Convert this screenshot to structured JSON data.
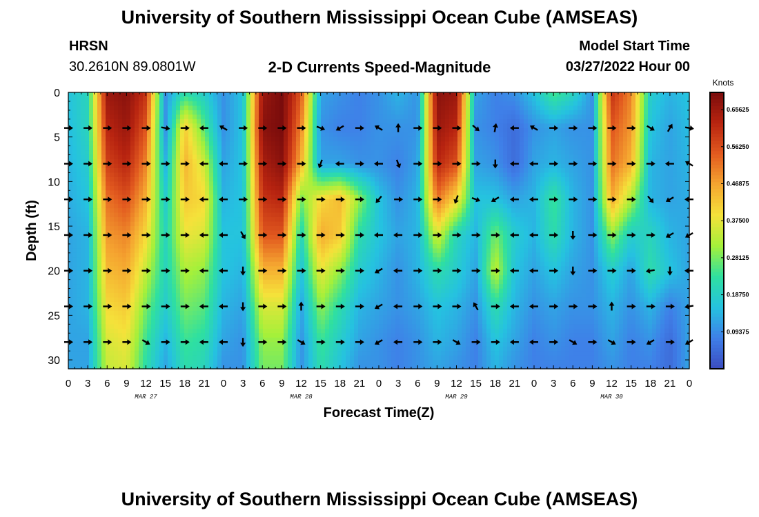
{
  "title": "University of Southern Mississippi Ocean Cube (AMSEAS)",
  "station": {
    "name": "HRSN",
    "coords": "30.2610N  89.0801W"
  },
  "subtitle": "2-D Currents Speed-Magnitude",
  "model_start": {
    "label": "Model Start Time",
    "value": "03/27/2022 Hour 00"
  },
  "footer_title": "University of Southern Mississippi Ocean Cube (AMSEAS)",
  "colors": {
    "colormap": [
      "#3b4cc0",
      "#3f7fe8",
      "#25c2e0",
      "#2fe0a0",
      "#a5f03a",
      "#f5e23a",
      "#f5a530",
      "#e25a1f",
      "#b82410",
      "#7a0c0c"
    ],
    "arrow": "#000000",
    "axis": "#000000"
  },
  "chart_data": {
    "type": "heatmap",
    "title": "2-D Currents Speed-Magnitude",
    "xlabel": "Forecast Time(Z)",
    "ylabel": "Depth (ft)",
    "colorbar_label": "Knots",
    "xlim": [
      0,
      96
    ],
    "ylim": [
      31,
      0
    ],
    "x_ticks_hours": [
      0,
      3,
      6,
      9,
      12,
      15,
      18,
      21,
      24,
      27,
      30,
      33,
      36,
      39,
      42,
      45,
      48,
      51,
      54,
      57,
      60,
      63,
      66,
      69,
      72,
      75,
      78,
      81,
      84,
      87,
      90,
      93,
      96
    ],
    "x_tick_labels": [
      "0",
      "3",
      "6",
      "9",
      "12",
      "15",
      "18",
      "21",
      "0",
      "3",
      "6",
      "9",
      "12",
      "15",
      "18",
      "21",
      "0",
      "3",
      "6",
      "9",
      "12",
      "15",
      "18",
      "21",
      "0",
      "3",
      "6",
      "9",
      "12",
      "15",
      "18",
      "21",
      "0"
    ],
    "day_labels": [
      {
        "hour": 12,
        "label": "MAR 27"
      },
      {
        "hour": 36,
        "label": "MAR 28"
      },
      {
        "hour": 60,
        "label": "MAR 29"
      },
      {
        "hour": 84,
        "label": "MAR 30"
      }
    ],
    "y_ticks": [
      0,
      5,
      10,
      15,
      20,
      25,
      30
    ],
    "colorbar_range": [
      0,
      0.7
    ],
    "colorbar_ticks": [
      "0.65625",
      "0.56250",
      "0.46875",
      "0.37500",
      "0.28125",
      "0.18750",
      "0.09375"
    ],
    "speed_hours": [
      0,
      3,
      6,
      9,
      12,
      15,
      18,
      21,
      24,
      27,
      30,
      33,
      36,
      39,
      42,
      45,
      48,
      51,
      54,
      57,
      60,
      63,
      66,
      69,
      72,
      75,
      78,
      81,
      84,
      87,
      90,
      93,
      96
    ],
    "speed_depths": [
      0,
      4,
      8,
      12,
      16,
      20,
      24,
      28,
      31
    ],
    "speed": [
      [
        0.16,
        0.2,
        0.66,
        0.68,
        0.6,
        0.1,
        0.22,
        0.18,
        0.1,
        0.16,
        0.66,
        0.7,
        0.55,
        0.12,
        0.1,
        0.08,
        0.1,
        0.14,
        0.1,
        0.68,
        0.66,
        0.12,
        0.08,
        0.1,
        0.16,
        0.25,
        0.2,
        0.1,
        0.6,
        0.5,
        0.18,
        0.14,
        0.16
      ],
      [
        0.15,
        0.2,
        0.62,
        0.66,
        0.55,
        0.1,
        0.42,
        0.26,
        0.1,
        0.16,
        0.68,
        0.7,
        0.5,
        0.1,
        0.08,
        0.08,
        0.1,
        0.1,
        0.1,
        0.66,
        0.62,
        0.1,
        0.08,
        0.05,
        0.1,
        0.12,
        0.1,
        0.1,
        0.55,
        0.48,
        0.16,
        0.12,
        0.15
      ],
      [
        0.14,
        0.18,
        0.58,
        0.62,
        0.5,
        0.14,
        0.45,
        0.35,
        0.12,
        0.16,
        0.64,
        0.68,
        0.45,
        0.12,
        0.12,
        0.1,
        0.1,
        0.08,
        0.12,
        0.62,
        0.56,
        0.12,
        0.1,
        0.05,
        0.12,
        0.14,
        0.12,
        0.1,
        0.52,
        0.45,
        0.14,
        0.12,
        0.14
      ],
      [
        0.13,
        0.16,
        0.52,
        0.56,
        0.45,
        0.18,
        0.42,
        0.4,
        0.14,
        0.16,
        0.6,
        0.62,
        0.28,
        0.4,
        0.44,
        0.3,
        0.16,
        0.1,
        0.14,
        0.52,
        0.4,
        0.16,
        0.16,
        0.12,
        0.14,
        0.24,
        0.14,
        0.1,
        0.46,
        0.32,
        0.14,
        0.12,
        0.13
      ],
      [
        0.12,
        0.14,
        0.48,
        0.5,
        0.4,
        0.2,
        0.38,
        0.36,
        0.16,
        0.16,
        0.55,
        0.55,
        0.2,
        0.46,
        0.42,
        0.22,
        0.16,
        0.12,
        0.14,
        0.36,
        0.2,
        0.14,
        0.28,
        0.18,
        0.14,
        0.22,
        0.14,
        0.1,
        0.3,
        0.18,
        0.2,
        0.14,
        0.12
      ],
      [
        0.12,
        0.14,
        0.44,
        0.46,
        0.34,
        0.2,
        0.32,
        0.3,
        0.16,
        0.14,
        0.45,
        0.45,
        0.16,
        0.38,
        0.3,
        0.18,
        0.14,
        0.1,
        0.14,
        0.22,
        0.18,
        0.12,
        0.34,
        0.16,
        0.12,
        0.16,
        0.12,
        0.1,
        0.18,
        0.12,
        0.22,
        0.16,
        0.12
      ],
      [
        0.12,
        0.14,
        0.4,
        0.42,
        0.28,
        0.18,
        0.28,
        0.26,
        0.14,
        0.12,
        0.36,
        0.36,
        0.12,
        0.3,
        0.22,
        0.14,
        0.12,
        0.1,
        0.12,
        0.16,
        0.14,
        0.1,
        0.22,
        0.14,
        0.1,
        0.12,
        0.1,
        0.1,
        0.14,
        0.1,
        0.14,
        0.08,
        0.12
      ],
      [
        0.12,
        0.12,
        0.36,
        0.38,
        0.24,
        0.14,
        0.24,
        0.22,
        0.12,
        0.1,
        0.3,
        0.3,
        0.1,
        0.24,
        0.18,
        0.12,
        0.1,
        0.08,
        0.1,
        0.14,
        0.12,
        0.08,
        0.16,
        0.12,
        0.08,
        0.1,
        0.08,
        0.08,
        0.12,
        0.08,
        0.1,
        0.05,
        0.12
      ],
      [
        0.12,
        0.12,
        0.34,
        0.36,
        0.22,
        0.12,
        0.22,
        0.2,
        0.1,
        0.1,
        0.28,
        0.28,
        0.1,
        0.22,
        0.16,
        0.1,
        0.1,
        0.08,
        0.1,
        0.12,
        0.1,
        0.08,
        0.14,
        0.1,
        0.08,
        0.08,
        0.08,
        0.08,
        0.1,
        0.08,
        0.08,
        0.05,
        0.12
      ]
    ],
    "vector_hours": [
      0,
      3,
      6,
      9,
      12,
      15,
      18,
      21,
      24,
      27,
      30,
      33,
      36,
      39,
      42,
      45,
      48,
      51,
      54,
      57,
      60,
      63,
      66,
      69,
      72,
      75,
      78,
      81,
      84,
      87,
      90,
      93,
      96
    ],
    "vector_depths": [
      4,
      8,
      12,
      16,
      20,
      24,
      28
    ],
    "vector_directions_deg": [
      [
        90,
        90,
        90,
        90,
        90,
        100,
        90,
        270,
        300,
        90,
        90,
        90,
        90,
        110,
        240,
        90,
        300,
        0,
        90,
        90,
        90,
        130,
        10,
        270,
        300,
        90,
        90,
        90,
        90,
        90,
        120,
        30,
        100
      ],
      [
        90,
        90,
        90,
        90,
        90,
        90,
        90,
        270,
        270,
        90,
        90,
        90,
        90,
        200,
        270,
        90,
        270,
        160,
        90,
        90,
        90,
        90,
        180,
        270,
        270,
        90,
        90,
        90,
        90,
        90,
        90,
        270,
        300
      ],
      [
        90,
        90,
        90,
        90,
        90,
        90,
        90,
        270,
        270,
        90,
        90,
        90,
        90,
        90,
        90,
        90,
        220,
        90,
        90,
        90,
        200,
        110,
        240,
        270,
        270,
        90,
        90,
        90,
        90,
        90,
        140,
        240,
        270
      ],
      [
        90,
        90,
        90,
        90,
        90,
        90,
        90,
        270,
        270,
        150,
        90,
        90,
        90,
        90,
        90,
        90,
        270,
        270,
        90,
        90,
        90,
        90,
        90,
        270,
        270,
        90,
        180,
        90,
        90,
        90,
        90,
        240,
        240
      ],
      [
        90,
        90,
        90,
        90,
        90,
        90,
        90,
        270,
        270,
        180,
        90,
        90,
        90,
        90,
        90,
        90,
        240,
        270,
        90,
        90,
        90,
        90,
        90,
        270,
        270,
        90,
        180,
        90,
        90,
        90,
        260,
        180,
        270
      ],
      [
        90,
        90,
        90,
        90,
        90,
        90,
        90,
        270,
        270,
        180,
        90,
        90,
        0,
        90,
        90,
        90,
        240,
        270,
        90,
        90,
        90,
        330,
        90,
        270,
        270,
        90,
        90,
        90,
        0,
        90,
        90,
        90,
        260
      ],
      [
        90,
        90,
        90,
        90,
        120,
        90,
        90,
        270,
        270,
        180,
        90,
        90,
        120,
        90,
        90,
        90,
        240,
        270,
        90,
        90,
        120,
        90,
        90,
        270,
        270,
        90,
        120,
        90,
        120,
        90,
        240,
        90,
        240
      ]
    ]
  }
}
